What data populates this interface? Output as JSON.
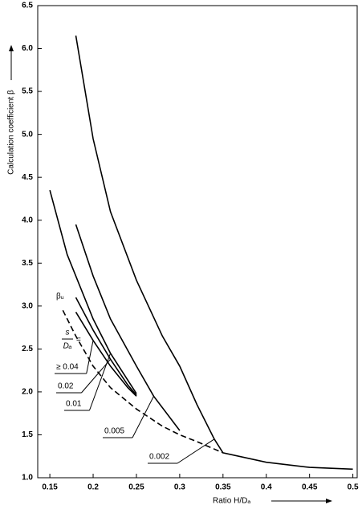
{
  "chart_data": {
    "type": "line",
    "ylabel": "Calculation coefficient β",
    "xlabel": "Ratio H/Dₐ",
    "legend_title": [
      "s",
      "Dₐ",
      "="
    ],
    "xlim": [
      0.136,
      0.505
    ],
    "ylim": [
      1.0,
      6.5
    ],
    "xticks": [
      0.15,
      0.2,
      0.25,
      0.3,
      0.35,
      0.4,
      0.45,
      0.5
    ],
    "yticks": [
      {
        "value": 1,
        "label": "1.0"
      },
      1.5,
      {
        "value": 2,
        "label": "2.0"
      },
      2.5,
      {
        "value": 3,
        "label": "3.0"
      },
      3.5,
      {
        "value": 4,
        "label": "4.0"
      },
      4.5,
      {
        "value": 5,
        "label": "5.0"
      },
      5.5,
      {
        "value": 6,
        "label": "6.0"
      },
      6.5
    ],
    "series": [
      {
        "name": "≥ 0.04",
        "color": "#000000",
        "x": [
          0.18,
          0.2,
          0.22,
          0.24,
          0.25
        ],
        "values": [
          2.93,
          2.6,
          2.3,
          2.05,
          1.95
        ]
      },
      {
        "name": "0.02",
        "color": "#000000",
        "x": [
          0.18,
          0.2,
          0.22,
          0.24,
          0.25
        ],
        "values": [
          3.1,
          2.72,
          2.38,
          2.08,
          1.96
        ]
      },
      {
        "name": "0.01",
        "color": "#000000",
        "x": [
          0.15,
          0.17,
          0.2,
          0.22,
          0.25
        ],
        "values": [
          4.35,
          3.6,
          2.85,
          2.45,
          1.98
        ]
      },
      {
        "name": "0.005",
        "color": "#000000",
        "x": [
          0.18,
          0.2,
          0.22,
          0.25,
          0.27,
          0.3
        ],
        "values": [
          3.95,
          3.35,
          2.85,
          2.3,
          1.95,
          1.55
        ]
      },
      {
        "name": "0.002",
        "color": "#000000",
        "x": [
          0.18,
          0.2,
          0.22,
          0.25,
          0.28,
          0.3,
          0.32,
          0.34,
          0.35,
          0.4,
          0.45,
          0.5
        ],
        "values": [
          6.15,
          4.95,
          4.1,
          3.3,
          2.65,
          2.3,
          1.85,
          1.45,
          1.29,
          1.18,
          1.12,
          1.1
        ]
      },
      {
        "name": "βᵤ",
        "color": "#000000",
        "line_style": "dashed",
        "x": [
          0.165,
          0.18,
          0.2,
          0.22,
          0.25,
          0.28,
          0.3,
          0.32,
          0.35
        ],
        "values": [
          2.95,
          2.65,
          2.3,
          2.05,
          1.8,
          1.6,
          1.5,
          1.42,
          1.29
        ]
      }
    ]
  }
}
